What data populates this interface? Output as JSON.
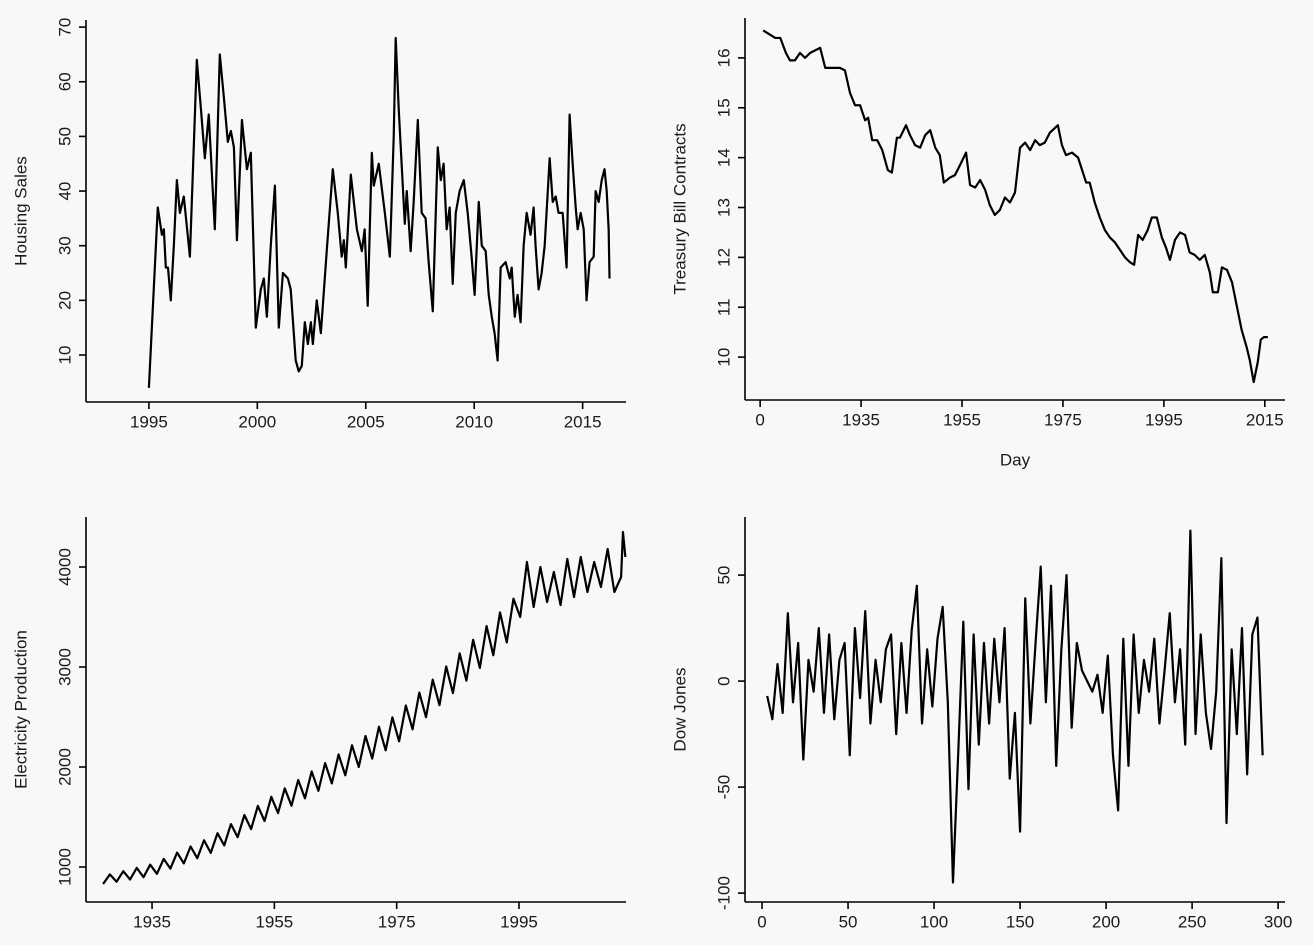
{
  "chart_data": [
    {
      "type": "line",
      "ylabel": "Housing Sales",
      "color": "#000000",
      "xlim": [
        1992.1,
        2017.0
      ],
      "ylim": [
        1.4,
        71.3
      ],
      "xticks": [
        1995,
        2000,
        2005,
        2010,
        2015
      ],
      "yticks": [
        10,
        20,
        30,
        40,
        50,
        60,
        70
      ],
      "x": [
        1995.0,
        1995.41,
        1995.6,
        1995.69,
        1995.78,
        1995.88,
        1996.01,
        1996.15,
        1996.29,
        1996.43,
        1996.61,
        1996.89,
        1997.21,
        1997.4,
        1997.58,
        1997.76,
        1998.04,
        1998.27,
        1998.46,
        1998.64,
        1998.78,
        1998.92,
        1999.06,
        1999.24,
        1999.29,
        1999.52,
        1999.7,
        1999.93,
        2000.16,
        2000.3,
        2000.44,
        2000.62,
        2000.81,
        2000.99,
        2001.18,
        2001.41,
        2001.54,
        2001.77,
        2001.91,
        2002.05,
        2002.19,
        2002.33,
        2002.47,
        2002.56,
        2002.74,
        2002.93,
        2003.2,
        2003.48,
        2003.71,
        2003.89,
        2003.99,
        2004.08,
        2004.31,
        2004.59,
        2004.82,
        2004.95,
        2005.09,
        2005.28,
        2005.37,
        2005.6,
        2005.88,
        2006.11,
        2006.29,
        2006.38,
        2006.52,
        2006.8,
        2006.89,
        2007.07,
        2007.21,
        2007.4,
        2007.58,
        2007.76,
        2007.9,
        2008.09,
        2008.32,
        2008.46,
        2008.59,
        2008.73,
        2008.87,
        2009.01,
        2009.15,
        2009.33,
        2009.52,
        2009.7,
        2009.88,
        2010.02,
        2010.21,
        2010.35,
        2010.53,
        2010.67,
        2010.81,
        2010.94,
        2011.08,
        2011.22,
        2011.45,
        2011.64,
        2011.73,
        2011.87,
        2012.0,
        2012.14,
        2012.28,
        2012.42,
        2012.6,
        2012.74,
        2012.83,
        2012.97,
        2013.11,
        2013.25,
        2013.48,
        2013.62,
        2013.76,
        2013.89,
        2014.08,
        2014.26,
        2014.4,
        2014.54,
        2014.68,
        2014.77,
        2014.91,
        2015.05,
        2015.18,
        2015.32,
        2015.51,
        2015.6,
        2015.74,
        2015.88,
        2016.01,
        2016.11,
        2016.2,
        2016.24
      ],
      "values": [
        4,
        37,
        32,
        33,
        26,
        26,
        20,
        30,
        42,
        36,
        39,
        28,
        64,
        55,
        46,
        54,
        33,
        65,
        57,
        49,
        51,
        48,
        31,
        48,
        53,
        44,
        47,
        15,
        22,
        24,
        17,
        30,
        41,
        15,
        25,
        24,
        22,
        9,
        7,
        8,
        16,
        12,
        16,
        12,
        20,
        14,
        29,
        44,
        36,
        28,
        31,
        26,
        43,
        33,
        29,
        33,
        19,
        47,
        41,
        45,
        36,
        28,
        50,
        68,
        55,
        34,
        40,
        29,
        38,
        53,
        36,
        35,
        27,
        18,
        48,
        42,
        45,
        33,
        37,
        23,
        36,
        40,
        42,
        36,
        28,
        21,
        38,
        30,
        29,
        21,
        17,
        14,
        9,
        26,
        27,
        24,
        26,
        17,
        21,
        16,
        30,
        36,
        32,
        37,
        30,
        22,
        25,
        30,
        46,
        38,
        39,
        36,
        36,
        26,
        54,
        45,
        37,
        33,
        36,
        33,
        20,
        27,
        28,
        40,
        38,
        42,
        44,
        40,
        33,
        24
      ]
    },
    {
      "type": "line",
      "ylabel": "Treasury Bill Contracts",
      "xlabel": "Day",
      "color": "#000000",
      "xlim": [
        -3,
        104
      ],
      "ylim": [
        9.14,
        16.8
      ],
      "xticks": [
        0,
        {
          "value": 20,
          "label": "1935"
        },
        {
          "value": 40,
          "label": "1955"
        },
        {
          "value": 60,
          "label": "1975"
        },
        {
          "value": 80,
          "label": "1995"
        },
        {
          "value": 100,
          "label": "2015"
        }
      ],
      "yticks": [
        10,
        11,
        12,
        13,
        14,
        15,
        16
      ],
      "x": [
        0.6,
        3.0,
        4.0,
        5.1,
        5.9,
        6.9,
        7.9,
        8.9,
        9.9,
        10.9,
        11.9,
        12.9,
        13.9,
        14.9,
        15.8,
        16.8,
        17.8,
        18.8,
        19.8,
        20.8,
        21.4,
        22.2,
        23.2,
        24.2,
        25.3,
        26.1,
        27.1,
        27.7,
        28.9,
        29.7,
        30.7,
        31.7,
        32.7,
        33.7,
        34.7,
        35.6,
        36.4,
        37.6,
        38.6,
        39.6,
        40.8,
        41.6,
        42.6,
        43.6,
        44.6,
        45.5,
        46.5,
        47.5,
        48.5,
        49.5,
        50.5,
        51.5,
        52.5,
        53.5,
        54.5,
        55.4,
        56.4,
        57.4,
        59.0,
        59.8,
        60.6,
        61.8,
        63.0,
        63.8,
        64.6,
        65.3,
        66.3,
        67.3,
        68.3,
        69.3,
        70.3,
        71.3,
        72.3,
        73.3,
        74.1,
        74.9,
        75.8,
        76.8,
        77.6,
        78.6,
        79.6,
        80.4,
        81.2,
        82.2,
        83.2,
        84.2,
        85.1,
        86.1,
        87.1,
        88.1,
        89.1,
        89.7,
        90.7,
        91.5,
        92.5,
        93.5,
        94.5,
        95.4,
        96.4,
        97.0,
        97.8,
        98.6,
        99.2,
        99.8,
        100.6
      ],
      "values": [
        16.55,
        16.4,
        16.4,
        16.1,
        15.95,
        15.95,
        16.1,
        16.0,
        16.1,
        16.15,
        16.2,
        15.8,
        15.8,
        15.8,
        15.8,
        15.75,
        15.3,
        15.05,
        15.05,
        14.75,
        14.8,
        14.35,
        14.35,
        14.15,
        13.75,
        13.7,
        14.4,
        14.4,
        14.65,
        14.45,
        14.25,
        14.2,
        14.45,
        14.55,
        14.2,
        14.05,
        13.5,
        13.6,
        13.65,
        13.85,
        14.1,
        13.45,
        13.4,
        13.55,
        13.35,
        13.05,
        12.85,
        12.95,
        13.2,
        13.1,
        13.3,
        14.2,
        14.3,
        14.15,
        14.35,
        14.25,
        14.3,
        14.5,
        14.65,
        14.25,
        14.05,
        14.1,
        14.0,
        13.75,
        13.5,
        13.5,
        13.1,
        12.8,
        12.55,
        12.4,
        12.3,
        12.15,
        12.0,
        11.9,
        11.85,
        12.45,
        12.35,
        12.55,
        12.8,
        12.8,
        12.4,
        12.2,
        11.95,
        12.35,
        12.5,
        12.45,
        12.1,
        12.05,
        11.95,
        12.05,
        11.7,
        11.3,
        11.3,
        11.8,
        11.75,
        11.5,
        11.0,
        10.55,
        10.2,
        9.95,
        9.5,
        9.9,
        10.35,
        10.4,
        10.4
      ]
    },
    {
      "type": "line",
      "ylabel": "Electricity Production",
      "color": "#000000",
      "xlim": [
        1924.2,
        2012.5
      ],
      "ylim": [
        650,
        4500
      ],
      "xticks": [
        1935,
        1955,
        1975,
        1995
      ],
      "yticks": [
        1000,
        2000,
        3000,
        4000
      ],
      "x": [
        1927.0,
        1928.1,
        1929.2,
        1930.3,
        1931.4,
        1932.5,
        1933.6,
        1934.7,
        1935.8,
        1936.9,
        1938.0,
        1939.1,
        1940.2,
        1941.3,
        1942.4,
        1943.5,
        1944.6,
        1945.7,
        1946.8,
        1947.9,
        1949.0,
        1950.1,
        1951.2,
        1952.3,
        1953.4,
        1954.5,
        1955.6,
        1956.7,
        1957.8,
        1958.9,
        1960.0,
        1961.1,
        1962.2,
        1963.3,
        1964.4,
        1965.5,
        1966.6,
        1967.7,
        1968.8,
        1969.9,
        1971.0,
        1972.1,
        1973.2,
        1974.3,
        1975.4,
        1976.5,
        1977.6,
        1978.7,
        1979.8,
        1980.9,
        1982.0,
        1983.1,
        1984.2,
        1985.3,
        1986.4,
        1987.5,
        1988.6,
        1989.7,
        1990.8,
        1991.9,
        1993.0,
        1994.1,
        1995.2,
        1996.3,
        1997.4,
        1998.5,
        1999.6,
        2000.7,
        2001.8,
        2002.9,
        2004.0,
        2005.1,
        2006.2,
        2007.3,
        2008.4,
        2009.5,
        2010.6,
        2011.7,
        2012.0,
        2012.4
      ],
      "values": [
        830,
        926,
        853,
        958,
        875,
        991,
        898,
        1023,
        932,
        1081,
        984,
        1144,
        1036,
        1205,
        1088,
        1267,
        1141,
        1338,
        1216,
        1429,
        1298,
        1520,
        1379,
        1611,
        1460,
        1702,
        1539,
        1786,
        1613,
        1870,
        1687,
        1955,
        1762,
        2039,
        1836,
        2125,
        1917,
        2217,
        2000,
        2310,
        2084,
        2403,
        2167,
        2496,
        2257,
        2615,
        2377,
        2744,
        2498,
        2874,
        2619,
        3005,
        2739,
        3136,
        2864,
        3272,
        2991,
        3409,
        3118,
        3546,
        3246,
        3683,
        3500,
        4050,
        3600,
        4000,
        3650,
        3950,
        3620,
        4080,
        3700,
        4100,
        3750,
        4050,
        3800,
        4180,
        3750,
        3900,
        4350,
        4100
      ]
    },
    {
      "type": "line",
      "ylabel": "Dow Jones",
      "color": "#000000",
      "xlim": [
        -9.9,
        304
      ],
      "ylim": [
        -104.2,
        77.4
      ],
      "xticks": [
        0,
        50,
        100,
        150,
        200,
        250,
        300
      ],
      "yticks": [
        -100,
        -50,
        0,
        50
      ],
      "x": [
        3,
        6,
        9,
        12,
        15,
        18,
        21,
        24,
        27,
        30,
        33,
        36,
        39,
        42,
        45,
        48,
        51,
        54,
        57,
        60,
        63,
        66,
        69,
        72,
        75,
        78,
        81,
        84,
        87,
        90,
        93,
        96,
        99,
        102,
        105,
        108,
        111,
        114,
        117,
        120,
        123,
        126,
        129,
        132,
        135,
        138,
        141,
        144,
        147,
        150,
        153,
        156,
        159,
        162,
        165,
        168,
        171,
        174,
        177,
        180,
        183,
        186,
        189,
        192,
        195,
        198,
        201,
        204,
        207,
        210,
        213,
        216,
        219,
        222,
        225,
        228,
        231,
        234,
        237,
        240,
        243,
        246,
        249,
        252,
        255,
        258,
        261,
        264,
        267,
        270,
        273,
        276,
        279,
        282,
        285,
        288,
        291
      ],
      "values": [
        -7,
        -18,
        8,
        -15,
        32,
        -10,
        18,
        -37,
        10,
        -5,
        25,
        -15,
        22,
        -18,
        10,
        18,
        -35,
        25,
        -8,
        33,
        -20,
        10,
        -10,
        15,
        22,
        -25,
        18,
        -15,
        24,
        45,
        -20,
        15,
        -12,
        20,
        35,
        -10,
        -95,
        -35,
        28,
        -51,
        22,
        -30,
        18,
        -20,
        20,
        -10,
        25,
        -46,
        -15,
        -71,
        39,
        -20,
        18,
        54,
        -10,
        45,
        -40,
        15,
        50,
        -22,
        18,
        5,
        0,
        -5,
        3,
        -15,
        12,
        -35,
        -61,
        20,
        -40,
        22,
        -15,
        10,
        -5,
        20,
        -20,
        5,
        32,
        -10,
        15,
        -30,
        71,
        -25,
        22,
        -15,
        -32,
        -5,
        58,
        -67,
        15,
        -25,
        25,
        -44,
        22,
        30,
        -35
      ]
    }
  ]
}
